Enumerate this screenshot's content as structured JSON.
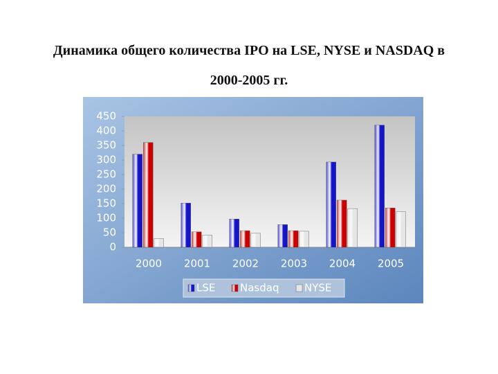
{
  "chart_data": {
    "type": "bar",
    "title": "Динамика общего количества IPO на LSE, NYSE и NASDAQ в 2000-2005 гг.",
    "categories": [
      "2000",
      "2001",
      "2002",
      "2003",
      "2004",
      "2005"
    ],
    "series": [
      {
        "name": "LSE",
        "color": "#1414c8",
        "values": [
          320,
          152,
          97,
          78,
          293,
          420
        ]
      },
      {
        "name": "Nasdaq",
        "color": "#cc0000",
        "values": [
          360,
          53,
          57,
          57,
          162,
          135
        ]
      },
      {
        "name": "NYSE",
        "color": "#e6e6e6",
        "values": [
          30,
          42,
          48,
          55,
          133,
          122
        ]
      }
    ],
    "ylim": [
      0,
      450
    ],
    "yticks": [
      0,
      50,
      100,
      150,
      200,
      250,
      300,
      350,
      400,
      450
    ],
    "grid": false
  }
}
